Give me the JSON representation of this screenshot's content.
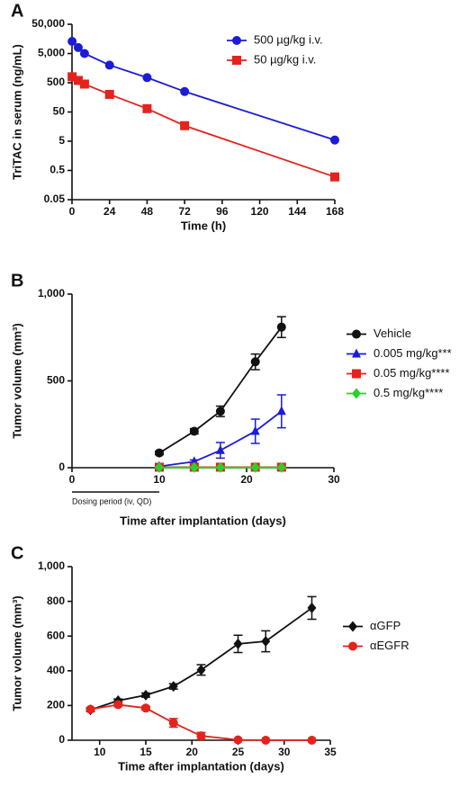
{
  "chart_data": [
    {
      "type": "line",
      "panel_label": "A",
      "y_label": "TriTAC in serum (ng/mL)",
      "x_label": "Time (h)",
      "log_y": true,
      "ylim": [
        0.05,
        50000
      ],
      "yticks": [
        0.05,
        0.5,
        5,
        50,
        500,
        {
          "value": 5000,
          "label": "5,000"
        },
        {
          "value": 50000,
          "label": "50,000"
        }
      ],
      "xlim": [
        0,
        168
      ],
      "xticks": [
        0,
        24,
        48,
        72,
        96,
        120,
        144,
        168
      ],
      "legend_loc": "upper right",
      "series": [
        {
          "name": "500 µg/kg i.v.",
          "color": "#1c1cd6",
          "marker": "circle",
          "x": [
            0.083,
            4,
            8,
            24,
            48,
            72,
            168
          ],
          "values": [
            13000,
            8000,
            5000,
            2000,
            750,
            250,
            5.5
          ]
        },
        {
          "name": "50 µg/kg i.v.",
          "color": "#e3231c",
          "marker": "square",
          "x": [
            0.083,
            4,
            8,
            24,
            48,
            72,
            168
          ],
          "values": [
            800,
            600,
            450,
            200,
            65,
            17,
            0.3
          ]
        }
      ]
    },
    {
      "type": "line",
      "panel_label": "B",
      "y_label": "Tumor volume (mm³)",
      "x_label": "Time after implantation (days)",
      "ylim": [
        0,
        1000
      ],
      "yticks": [
        0,
        500,
        {
          "value": 1000,
          "label": "1,000"
        }
      ],
      "xlim": [
        0,
        30
      ],
      "xticks": [
        0,
        10,
        20,
        30
      ],
      "legend_loc": "center right",
      "dosing_period": {
        "label": "Dosing period (iv, QD)",
        "start": 0,
        "end": 10
      },
      "series": [
        {
          "name": "Vehicle",
          "color": "#111111",
          "marker": "circle",
          "x": [
            10,
            14,
            17,
            21,
            24
          ],
          "values": [
            85,
            210,
            325,
            610,
            810
          ],
          "errors": [
            10,
            15,
            30,
            45,
            60
          ]
        },
        {
          "name": "0.005 mg/kg***",
          "color": "#1c1cd6",
          "marker": "triangle",
          "x": [
            10,
            14,
            17,
            21,
            24
          ],
          "values": [
            8,
            35,
            100,
            210,
            325
          ],
          "errors": [
            5,
            10,
            45,
            70,
            95
          ]
        },
        {
          "name": "0.05 mg/kg****",
          "color": "#e3231c",
          "marker": "square",
          "x": [
            10,
            14,
            17,
            21,
            24
          ],
          "values": [
            3,
            3,
            3,
            3,
            3
          ],
          "errors": [
            1,
            1,
            1,
            1,
            1
          ]
        },
        {
          "name": "0.5 mg/kg****",
          "color": "#2ccf2c",
          "marker": "diamond",
          "x": [
            10,
            14,
            17,
            21,
            24
          ],
          "values": [
            1,
            1,
            1,
            1,
            1
          ],
          "errors": [
            1,
            1,
            1,
            1,
            1
          ]
        }
      ]
    },
    {
      "type": "line",
      "panel_label": "C",
      "y_label": "Tumor volume (mm³)",
      "x_label": "Time after implantation (days)",
      "ylim": [
        0,
        1000
      ],
      "yticks": [
        0,
        200,
        400,
        600,
        800,
        {
          "value": 1000,
          "label": "1,000"
        }
      ],
      "xlim": [
        7,
        35
      ],
      "xticks": [
        10,
        15,
        20,
        25,
        30,
        35
      ],
      "legend_loc": "center right",
      "series": [
        {
          "name": "αGFP",
          "color": "#111111",
          "marker": "diamond",
          "x": [
            9,
            12,
            15,
            18,
            21,
            25,
            28,
            33
          ],
          "values": [
            175,
            228,
            260,
            310,
            405,
            555,
            570,
            762
          ],
          "errors": [
            10,
            10,
            12,
            15,
            30,
            50,
            60,
            65
          ]
        },
        {
          "name": "αEGFR",
          "color": "#e3231c",
          "marker": "circle",
          "x": [
            9,
            12,
            15,
            18,
            21,
            25,
            28,
            33
          ],
          "values": [
            178,
            205,
            185,
            100,
            25,
            2,
            0,
            0
          ],
          "errors": [
            10,
            10,
            10,
            25,
            20,
            2,
            2,
            0
          ]
        }
      ]
    }
  ]
}
